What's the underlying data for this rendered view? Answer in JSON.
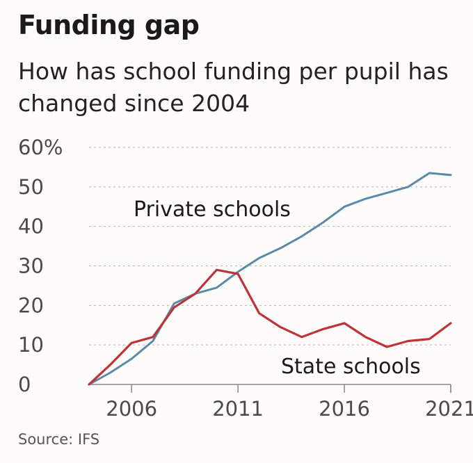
{
  "chart_data": {
    "type": "line",
    "title": "Funding gap",
    "subtitle": "How has school funding per pupil has changed since 2004",
    "source": "Source: IFS",
    "ylim": [
      0,
      60
    ],
    "xlim": [
      2004,
      2021
    ],
    "y_ticks": [
      {
        "value": 0,
        "label": "0"
      },
      {
        "value": 10,
        "label": "10"
      },
      {
        "value": 20,
        "label": "20"
      },
      {
        "value": 30,
        "label": "30"
      },
      {
        "value": 40,
        "label": "40"
      },
      {
        "value": 50,
        "label": "50"
      },
      {
        "value": 60,
        "label": "60%"
      }
    ],
    "x_ticks": [
      {
        "value": 2006,
        "label": "2006"
      },
      {
        "value": 2011,
        "label": "2011"
      },
      {
        "value": 2016,
        "label": "2016"
      },
      {
        "value": 2021,
        "label": "2021"
      }
    ],
    "grid": true,
    "series": [
      {
        "name": "Private schools",
        "color": "#5b8aa6",
        "x": [
          2004,
          2005,
          2006,
          2007,
          2008,
          2009,
          2010,
          2011,
          2012,
          2013,
          2014,
          2015,
          2016,
          2017,
          2018,
          2019,
          2020,
          2021
        ],
        "y": [
          0,
          3,
          6.5,
          11,
          20.5,
          23,
          24.5,
          28.5,
          32,
          34.5,
          37.5,
          41,
          45,
          47,
          48.5,
          50,
          53.5,
          53
        ]
      },
      {
        "name": "State schools",
        "color": "#c0323a",
        "x": [
          2004,
          2005,
          2006,
          2007,
          2008,
          2009,
          2010,
          2011,
          2012,
          2013,
          2014,
          2015,
          2016,
          2017,
          2018,
          2019,
          2020,
          2021
        ],
        "y": [
          0,
          5,
          10.5,
          12,
          19.5,
          23,
          29,
          28,
          18,
          14.5,
          12,
          14,
          15.5,
          12,
          9.5,
          11,
          11.5,
          15.5
        ]
      }
    ]
  }
}
